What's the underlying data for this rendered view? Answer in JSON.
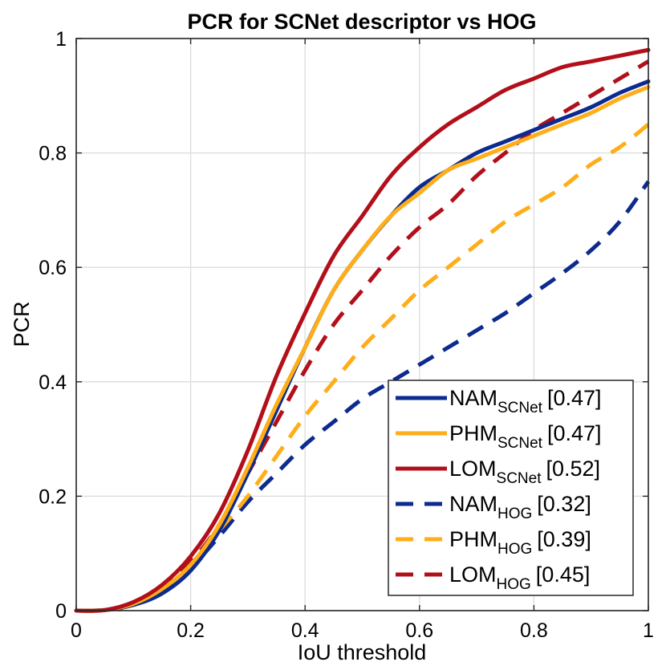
{
  "chart_data": {
    "type": "line",
    "title": "PCR for SCNet descriptor vs HOG",
    "xlabel": "IoU threshold",
    "ylabel": "PCR",
    "xlim": [
      0,
      1
    ],
    "ylim": [
      0,
      1
    ],
    "xticks": [
      0,
      0.2,
      0.4,
      0.6,
      0.8,
      1
    ],
    "yticks": [
      0,
      0.2,
      0.4,
      0.6,
      0.8,
      1
    ],
    "xtick_labels": [
      "0",
      "0.2",
      "0.4",
      "0.6",
      "0.8",
      "1"
    ],
    "ytick_labels": [
      "0",
      "0.2",
      "0.4",
      "0.6",
      "0.8",
      "1"
    ],
    "grid": true,
    "legend_position": "bottom-right",
    "x": [
      0,
      0.05,
      0.1,
      0.15,
      0.2,
      0.25,
      0.3,
      0.35,
      0.4,
      0.45,
      0.5,
      0.55,
      0.6,
      0.65,
      0.7,
      0.75,
      0.8,
      0.85,
      0.9,
      0.95,
      1.0
    ],
    "series": [
      {
        "name": "NAM",
        "sub": "SCNet",
        "score": "[0.47]",
        "color": "#0d2b8e",
        "dash": "solid",
        "values": [
          0,
          0.001,
          0.01,
          0.03,
          0.07,
          0.14,
          0.24,
          0.35,
          0.46,
          0.56,
          0.63,
          0.69,
          0.74,
          0.77,
          0.8,
          0.82,
          0.84,
          0.86,
          0.88,
          0.905,
          0.925
        ]
      },
      {
        "name": "PHM",
        "sub": "SCNet",
        "score": "[0.47]",
        "color": "#ffad18",
        "dash": "solid",
        "values": [
          0,
          0.001,
          0.012,
          0.038,
          0.08,
          0.15,
          0.25,
          0.36,
          0.46,
          0.56,
          0.63,
          0.69,
          0.73,
          0.77,
          0.79,
          0.81,
          0.83,
          0.85,
          0.87,
          0.895,
          0.915
        ]
      },
      {
        "name": "LOM",
        "sub": "SCNet",
        "score": "[0.52]",
        "color": "#b20f1a",
        "dash": "solid",
        "values": [
          0,
          0.001,
          0.015,
          0.045,
          0.095,
          0.17,
          0.28,
          0.41,
          0.52,
          0.62,
          0.69,
          0.76,
          0.81,
          0.85,
          0.88,
          0.91,
          0.93,
          0.95,
          0.96,
          0.97,
          0.98
        ]
      },
      {
        "name": "NAM",
        "sub": "HOG",
        "score": "[0.32]",
        "color": "#0d2b8e",
        "dash": "dashed",
        "values": [
          0,
          0.001,
          0.01,
          0.035,
          0.075,
          0.13,
          0.19,
          0.24,
          0.29,
          0.33,
          0.37,
          0.4,
          0.43,
          0.46,
          0.49,
          0.52,
          0.555,
          0.59,
          0.63,
          0.68,
          0.75
        ]
      },
      {
        "name": "PHM",
        "sub": "HOG",
        "score": "[0.39]",
        "color": "#ffad18",
        "dash": "dashed",
        "values": [
          0,
          0.001,
          0.012,
          0.04,
          0.08,
          0.14,
          0.2,
          0.27,
          0.34,
          0.4,
          0.46,
          0.51,
          0.56,
          0.6,
          0.64,
          0.68,
          0.71,
          0.74,
          0.78,
          0.81,
          0.85
        ]
      },
      {
        "name": "LOM",
        "sub": "HOG",
        "score": "[0.45]",
        "color": "#b20f1a",
        "dash": "dashed",
        "values": [
          0,
          0.001,
          0.013,
          0.042,
          0.085,
          0.15,
          0.24,
          0.33,
          0.42,
          0.5,
          0.56,
          0.62,
          0.67,
          0.71,
          0.76,
          0.8,
          0.84,
          0.87,
          0.9,
          0.93,
          0.96
        ]
      }
    ]
  }
}
